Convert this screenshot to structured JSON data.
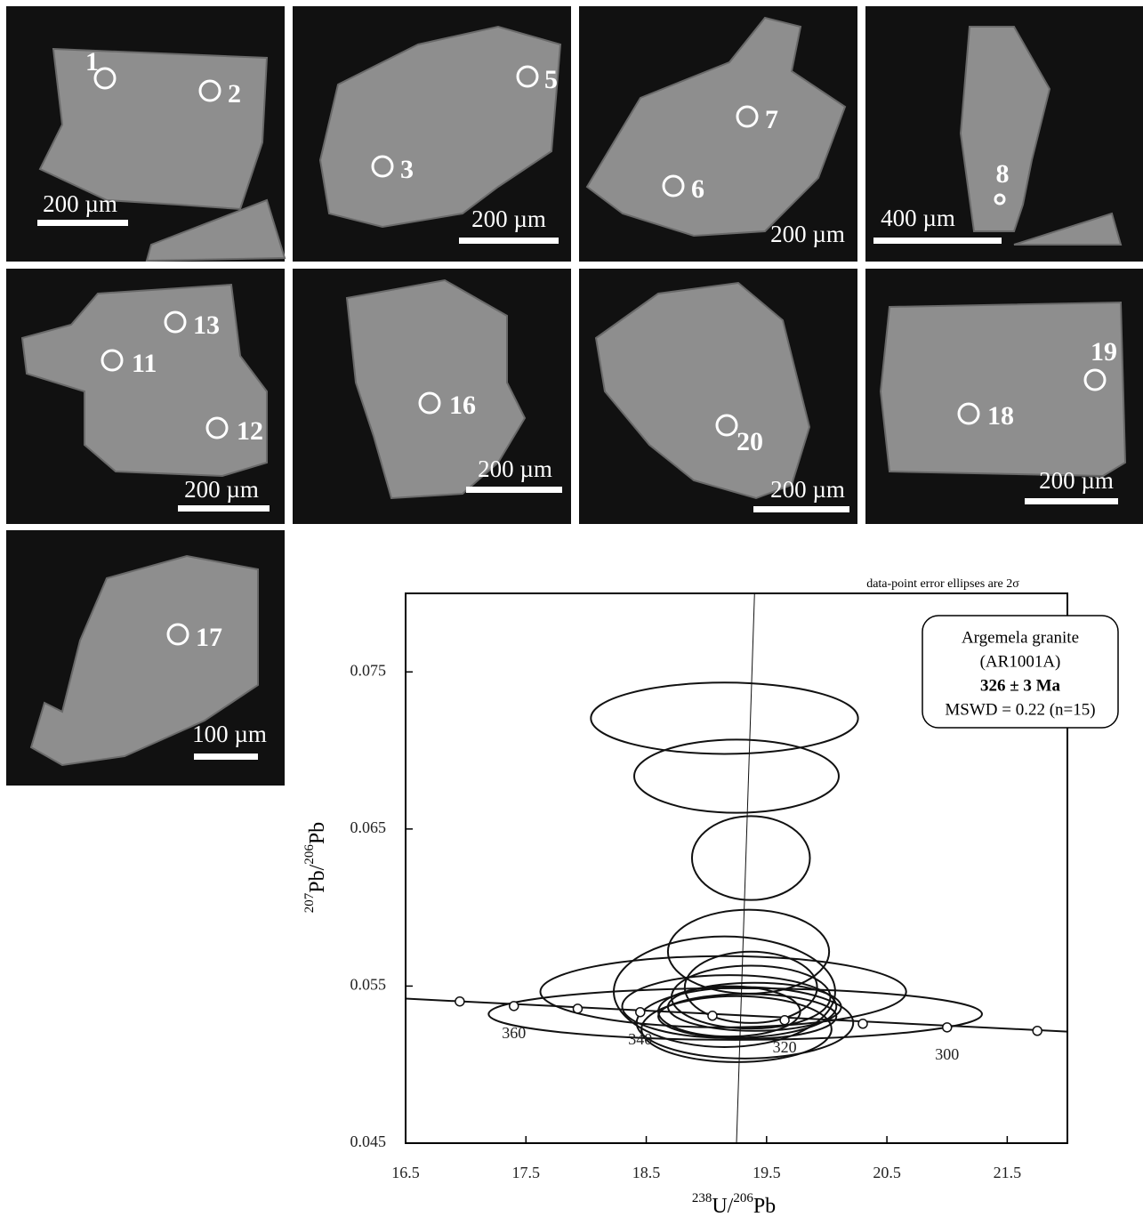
{
  "panels": [
    {
      "spots": [
        "1",
        "2"
      ],
      "scale": "200 µm"
    },
    {
      "spots": [
        "5",
        "3"
      ],
      "scale": "200 µm"
    },
    {
      "spots": [
        "7",
        "6"
      ],
      "scale": "200 µm"
    },
    {
      "spots": [
        "8"
      ],
      "scale": "400 µm"
    },
    {
      "spots": [
        "13",
        "11",
        "12"
      ],
      "scale": "200 µm"
    },
    {
      "spots": [
        "16"
      ],
      "scale": "200 µm"
    },
    {
      "spots": [
        "20"
      ],
      "scale": "200 µm"
    },
    {
      "spots": [
        "19",
        "18"
      ],
      "scale": "200 µm"
    },
    {
      "spots": [
        "17"
      ],
      "scale": "100 µm"
    }
  ],
  "chart_data": {
    "type": "concordia",
    "annotation": "data-point error ellipses are 2σ",
    "legend_lines": [
      "Argemela granite",
      "(AR1001A)",
      "326 ± 3 Ma",
      "MSWD = 0.22 (n=15)"
    ],
    "x_label": [
      "238",
      "U/",
      "206",
      "Pb"
    ],
    "y_label": [
      "207",
      "Pb/",
      "206",
      "Pb"
    ],
    "xlim": [
      16.5,
      22.0
    ],
    "ylim": [
      0.045,
      0.08
    ],
    "xticks": [
      16.5,
      17.5,
      18.5,
      19.5,
      20.5,
      21.5
    ],
    "yticks": [
      0.045,
      0.055,
      0.065,
      0.075
    ],
    "ellipses": [
      {
        "x": 19.15,
        "y": 0.07205,
        "rx": 1.11,
        "ry": 0.00227
      },
      {
        "x": 19.25,
        "y": 0.06836,
        "rx": 0.85,
        "ry": 0.00233
      },
      {
        "x": 19.37,
        "y": 0.06315,
        "rx": 0.49,
        "ry": 0.00267
      },
      {
        "x": 19.35,
        "y": 0.05719,
        "rx": 0.67,
        "ry": 0.00267
      },
      {
        "x": 19.15,
        "y": 0.05464,
        "rx": 0.92,
        "ry": 0.00352
      },
      {
        "x": 19.14,
        "y": 0.05464,
        "rx": 1.52,
        "ry": 0.00227
      },
      {
        "x": 19.24,
        "y": 0.05322,
        "rx": 2.05,
        "ry": 0.00164
      },
      {
        "x": 19.19,
        "y": 0.0537,
        "rx": 0.89,
        "ry": 0.002
      },
      {
        "x": 19.32,
        "y": 0.05266,
        "rx": 0.9,
        "ry": 0.00227
      },
      {
        "x": 19.25,
        "y": 0.05226,
        "rx": 0.79,
        "ry": 0.0021
      },
      {
        "x": 19.34,
        "y": 0.05307,
        "rx": 0.74,
        "ry": 0.00142
      },
      {
        "x": 19.37,
        "y": 0.05492,
        "rx": 0.55,
        "ry": 0.00227
      },
      {
        "x": 19.4,
        "y": 0.05368,
        "rx": 0.72,
        "ry": 0.00153
      },
      {
        "x": 19.19,
        "y": 0.05339,
        "rx": 0.59,
        "ry": 0.0016
      },
      {
        "x": 19.37,
        "y": 0.0543,
        "rx": 0.66,
        "ry": 0.002
      }
    ],
    "concordia_curve": {
      "x": [
        16.5,
        22.0
      ],
      "y": [
        0.0542,
        0.0521
      ]
    },
    "concordia_ages": {
      "x": [
        16.95,
        17.4,
        17.93,
        18.45,
        19.05,
        19.65,
        20.3,
        21.0,
        21.75
      ],
      "y": [
        0.05402,
        0.05373,
        0.05356,
        0.05334,
        0.05311,
        0.05283,
        0.0526,
        0.05237,
        0.05215
      ],
      "labels": [
        null,
        360,
        null,
        340,
        null,
        320,
        null,
        300,
        null
      ]
    },
    "age_line": {
      "x": [
        19.25,
        19.4
      ],
      "y": [
        0.045,
        0.08
      ]
    }
  }
}
